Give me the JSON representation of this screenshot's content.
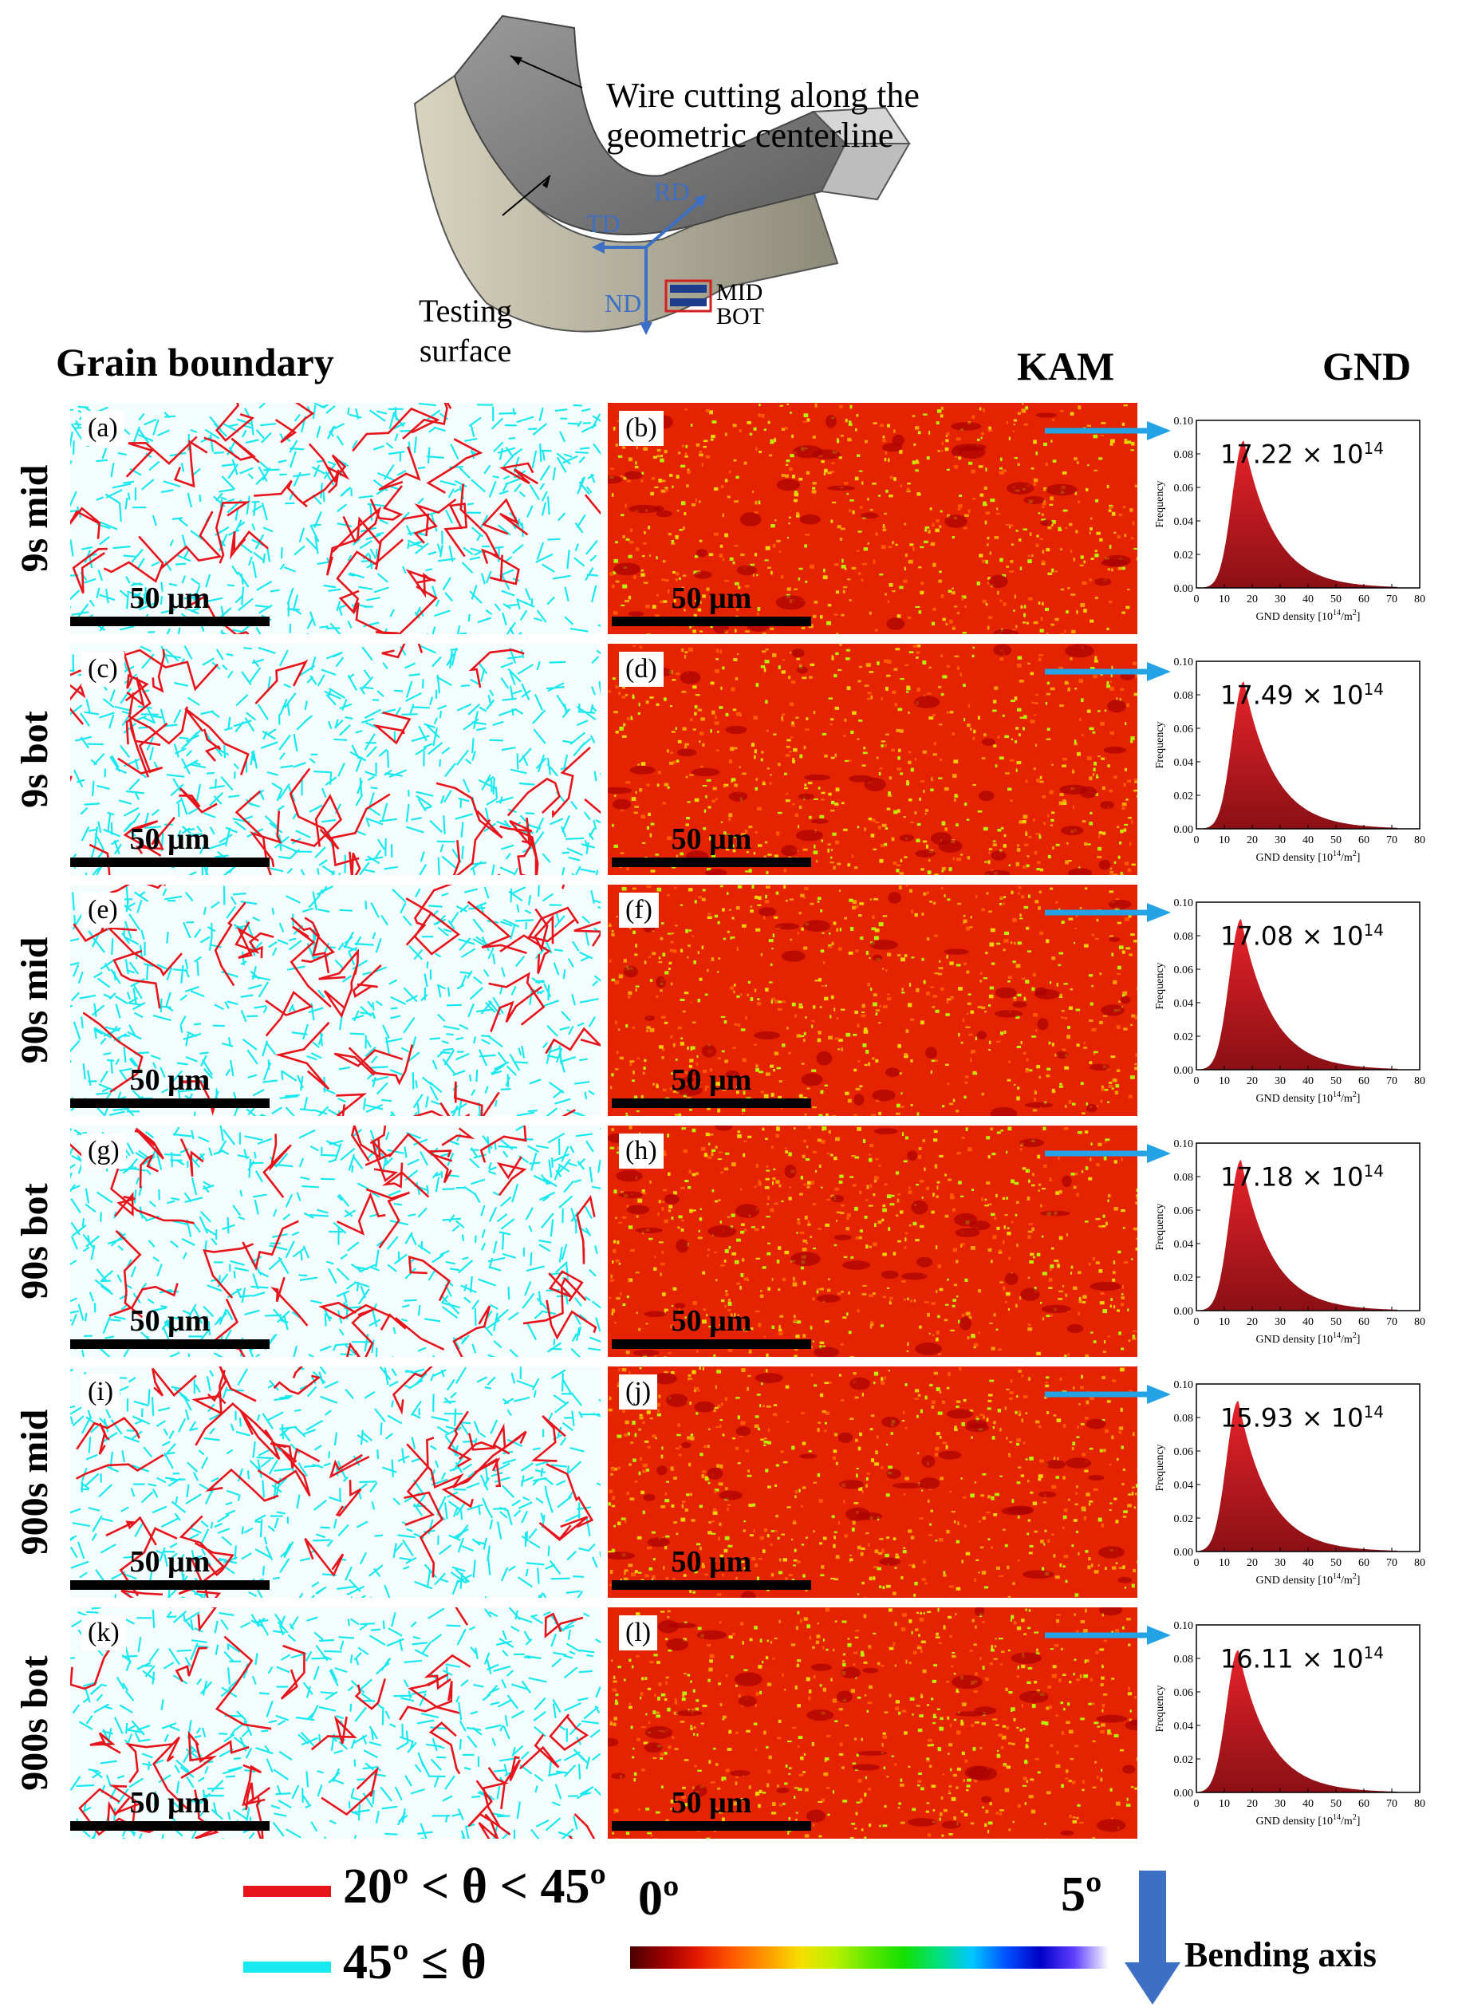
{
  "schematic": {
    "annotation_wire": "Wire cutting along the",
    "annotation_wire2": "geometric centerline",
    "label_testing": "Testing",
    "label_surface": "surface",
    "axis_rd": "RD",
    "axis_td": "TD",
    "axis_nd": "ND",
    "label_mid": "MID",
    "label_bot": "BOT"
  },
  "headers": {
    "grain_boundary": "Grain boundary",
    "kam": "KAM",
    "gnd": "GND"
  },
  "rows": [
    {
      "label": "9s mid",
      "gb_panel": "(a)",
      "kam_panel": "(b)",
      "gnd_value": "17.22",
      "gnd_exp": "× 10",
      "gnd_pow": "14",
      "scale": "50 μm"
    },
    {
      "label": "9s bot",
      "gb_panel": "(c)",
      "kam_panel": "(d)",
      "gnd_value": "17.49",
      "gnd_exp": "× 10",
      "gnd_pow": "14",
      "scale": "50 μm"
    },
    {
      "label": "90s mid",
      "gb_panel": "(e)",
      "kam_panel": "(f)",
      "gnd_value": "17.08",
      "gnd_exp": "× 10",
      "gnd_pow": "14",
      "scale": "50 μm"
    },
    {
      "label": "90s bot",
      "gb_panel": "(g)",
      "kam_panel": "(h)",
      "gnd_value": "17.18",
      "gnd_exp": "× 10",
      "gnd_pow": "14",
      "scale": "50 μm"
    },
    {
      "label": "900s mid",
      "gb_panel": "(i)",
      "kam_panel": "(j)",
      "gnd_value": "15.93",
      "gnd_exp": "× 10",
      "gnd_pow": "14",
      "scale": "50 μm"
    },
    {
      "label": "900s bot",
      "gb_panel": "(k)",
      "kam_panel": "(l)",
      "gnd_value": "16.11",
      "gnd_exp": "× 10",
      "gnd_pow": "14",
      "scale": "50 μm"
    }
  ],
  "chart_data": {
    "type": "area",
    "xlabel": "GND density [10^14/m^2]",
    "ylabel": "Frequency",
    "xlim": [
      0,
      80
    ],
    "ylim": [
      0,
      0.1
    ],
    "xticks": [
      "0",
      "10",
      "20",
      "30",
      "40",
      "50",
      "60",
      "70",
      "80"
    ],
    "yticks": [
      "0.00",
      "0.02",
      "0.04",
      "0.06",
      "0.08",
      "0.10"
    ],
    "series": [
      {
        "name": "9s mid",
        "peak_x": 17,
        "peak_y": 0.088,
        "mean": 17.22
      },
      {
        "name": "9s bot",
        "peak_x": 17,
        "peak_y": 0.088,
        "mean": 17.49
      },
      {
        "name": "90s mid",
        "peak_x": 16,
        "peak_y": 0.09,
        "mean": 17.08
      },
      {
        "name": "90s bot",
        "peak_x": 16,
        "peak_y": 0.09,
        "mean": 17.18
      },
      {
        "name": "900s mid",
        "peak_x": 15,
        "peak_y": 0.09,
        "mean": 15.93
      },
      {
        "name": "900s bot",
        "peak_x": 15,
        "peak_y": 0.085,
        "mean": 16.11
      }
    ]
  },
  "legend": {
    "red_label": "20º < θ < 45º",
    "cyan_label": "45º ≤ θ",
    "kam_min": "0º",
    "kam_max": "5º",
    "bending_axis": "Bending axis",
    "red_color": "#e8141b",
    "cyan_color": "#18e8f0"
  }
}
